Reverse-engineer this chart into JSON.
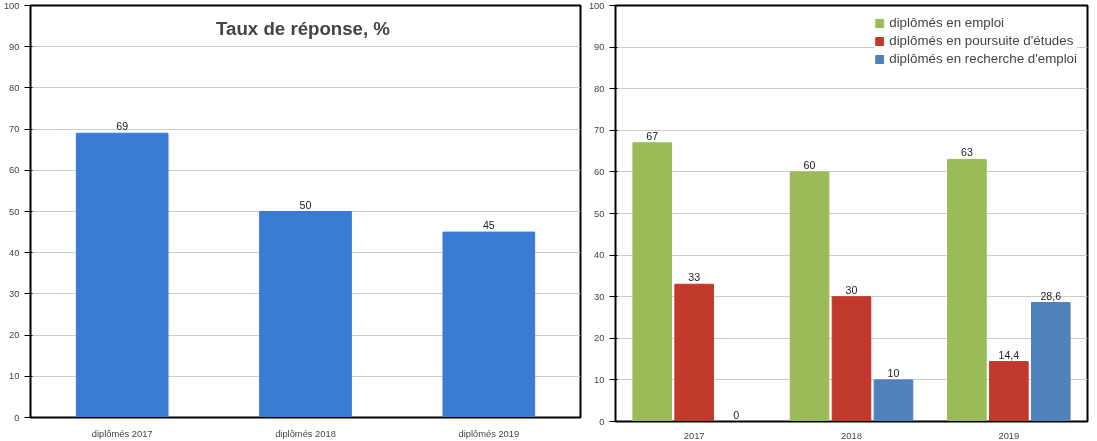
{
  "chart_data": [
    {
      "type": "bar",
      "title": "Taux de réponse, %",
      "categories": [
        "diplômés 2017",
        "diplômés 2018",
        "diplômés 2019"
      ],
      "values": [
        69,
        50,
        45
      ],
      "color": "#3a7bd5",
      "ylim": [
        0,
        100
      ],
      "yticks": [
        0,
        10,
        20,
        30,
        40,
        50,
        60,
        70,
        80,
        90,
        100
      ],
      "grid": "y",
      "data_labels": true
    },
    {
      "type": "bar",
      "categories": [
        "2017",
        "2018",
        "2019"
      ],
      "series": [
        {
          "name": "diplômés en emploi",
          "color": "#9bbb59",
          "values": [
            67,
            60,
            63
          ],
          "value_labels": [
            "67",
            "60",
            "63"
          ]
        },
        {
          "name": "diplômés en poursuite d'études",
          "color": "#c0392b",
          "values": [
            33,
            30,
            14.4
          ],
          "value_labels": [
            "33",
            "30",
            "14,4"
          ]
        },
        {
          "name": "diplômés en recherche d'emploi",
          "color": "#4f81bd",
          "values": [
            0,
            10,
            28.6
          ],
          "value_labels": [
            "0",
            "10",
            "28,6"
          ]
        }
      ],
      "ylim": [
        0,
        100
      ],
      "yticks": [
        0,
        10,
        20,
        30,
        40,
        50,
        60,
        70,
        80,
        90,
        100
      ],
      "grid": "y",
      "legend": "top right"
    }
  ]
}
